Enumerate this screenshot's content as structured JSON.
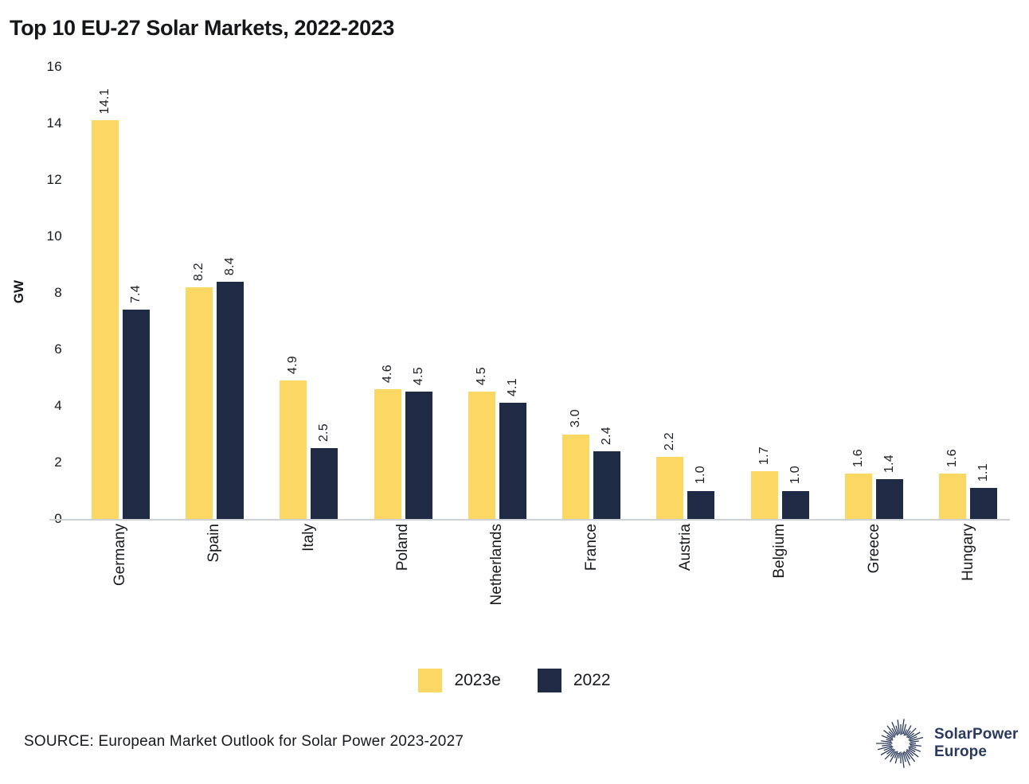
{
  "title": "Top 10 EU-27 Solar Markets, 2022-2023",
  "chart_data": {
    "type": "bar",
    "title": "Top 10 EU-27 Solar Markets, 2022-2023",
    "xlabel": "",
    "ylabel": "GW",
    "ylim": [
      0,
      16
    ],
    "yticks": [
      0,
      2,
      4,
      6,
      8,
      10,
      12,
      14,
      16
    ],
    "grid": false,
    "legend_position": "bottom",
    "value_labels_rotated": true,
    "categories": [
      "Germany",
      "Spain",
      "Italy",
      "Poland",
      "Netherlands",
      "France",
      "Austria",
      "Belgium",
      "Greece",
      "Hungary"
    ],
    "series": [
      {
        "name": "2023e",
        "color": "#FBD763",
        "values": [
          14.1,
          8.2,
          4.9,
          4.6,
          4.5,
          3.0,
          2.2,
          1.7,
          1.6,
          1.6
        ]
      },
      {
        "name": "2022",
        "color": "#1F2B45",
        "values": [
          7.4,
          8.4,
          2.5,
          4.5,
          4.1,
          2.4,
          1.0,
          1.0,
          1.4,
          1.1
        ]
      }
    ]
  },
  "footer": {
    "source": "SOURCE: European Market Outlook for Solar Power 2023-2027",
    "logo": {
      "line1": "SolarPower",
      "line2": "Europe",
      "color": "#2B3A5C",
      "icon": "sunburst-icon"
    }
  }
}
